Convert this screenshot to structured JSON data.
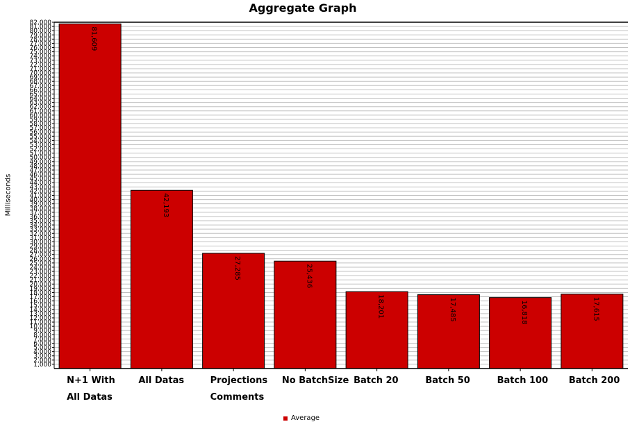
{
  "chart_data": {
    "type": "bar",
    "title": "Aggregate Graph",
    "xlabel": "",
    "ylabel": "Milliseconds",
    "categories": [
      [
        "N+1 With",
        "All Datas"
      ],
      [
        "All Datas"
      ],
      [
        "Projections",
        "Comments"
      ],
      [
        "No BatchSize"
      ],
      [
        "Batch 20"
      ],
      [
        "Batch 50"
      ],
      [
        "Batch 100"
      ],
      [
        "Batch 200"
      ]
    ],
    "series": [
      {
        "name": "Average",
        "values": [
          81609,
          42193,
          27285,
          25436,
          18201,
          17485,
          16818,
          17615
        ],
        "labels": [
          "81,609",
          "42,193",
          "27,285",
          "25,436",
          "18,201",
          "17,485",
          "16,818",
          "17,615"
        ]
      }
    ],
    "ylim": [
      0,
      82000
    ],
    "y_tick_step": 1000,
    "grid": true,
    "legend_position": "bottom",
    "bar_color": "#cc0000",
    "grid_color": "#c0c0c0"
  }
}
